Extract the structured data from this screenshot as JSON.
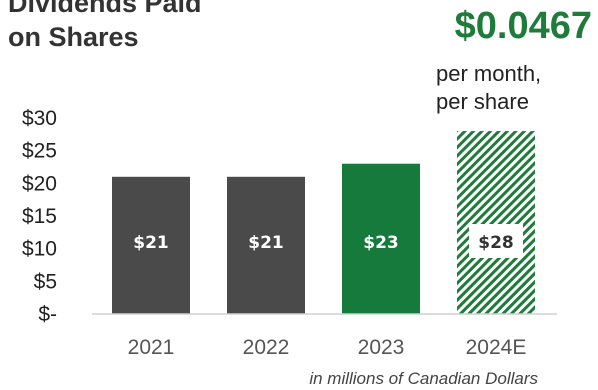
{
  "title_line1": "Dividends Paid",
  "title_line2": "on Shares",
  "highlight": {
    "value": "$0.0467",
    "caption_line1": "per month,",
    "caption_line2": "per share"
  },
  "footnote": "in millions of Canadian Dollars",
  "colors": {
    "dark_bar": "#4a4a4a",
    "green_bar": "#157a3c",
    "hatch": "#1e7b3a",
    "accent": "#1e7b3a"
  },
  "chart_data": {
    "type": "bar",
    "categories": [
      "2021",
      "2022",
      "2023",
      "2024E"
    ],
    "values": [
      21,
      21,
      23,
      28
    ],
    "data_labels": [
      "$21",
      "$21",
      "$23",
      "$28"
    ],
    "styles": [
      "solid-dark",
      "solid-dark",
      "solid-green",
      "hatched-green"
    ],
    "yticks": [
      0,
      5,
      10,
      15,
      20,
      25,
      30
    ],
    "ytick_labels": [
      "$-",
      "$5",
      "$10",
      "$15",
      "$20",
      "$25",
      "$30"
    ],
    "ylim": [
      0,
      30
    ],
    "grid": false,
    "legend": "none"
  }
}
